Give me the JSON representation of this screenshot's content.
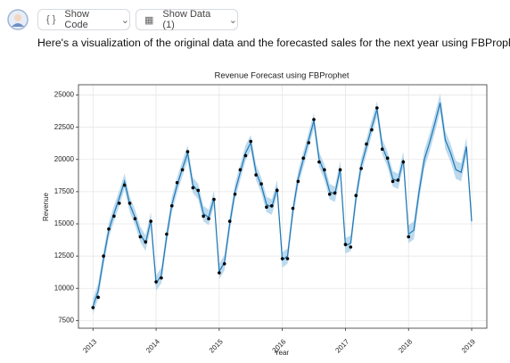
{
  "ui": {
    "buttons": [
      "Show Code",
      "Show Data (1)"
    ],
    "message": "Here's a visualization of the original data and the forecasted sales for the next year using FBProphet:"
  },
  "chart_data": {
    "type": "forecast",
    "title": "Revenue Forecast using FBProphet",
    "x_label": "Year",
    "y_label": "Revenue",
    "xlim": [
      2012.77,
      2019.24
    ],
    "xticks": [
      2013,
      2014,
      2015,
      2016,
      2017,
      2018,
      2019
    ],
    "ylim": [
      6900,
      25800
    ],
    "yticks": [
      7500,
      10000,
      12500,
      15000,
      17500,
      20000,
      22500,
      25000
    ],
    "grid": true,
    "line_color": "#1f77b4",
    "band_color": "#a6cde8",
    "point_color": "#000000",
    "x": [
      2013,
      2013.083,
      2013.167,
      2013.25,
      2013.333,
      2013.417,
      2013.5,
      2013.583,
      2013.667,
      2013.75,
      2013.833,
      2013.917,
      2014,
      2014.083,
      2014.167,
      2014.25,
      2014.333,
      2014.417,
      2014.5,
      2014.583,
      2014.667,
      2014.75,
      2014.833,
      2014.917,
      2015,
      2015.083,
      2015.167,
      2015.25,
      2015.333,
      2015.417,
      2015.5,
      2015.583,
      2015.667,
      2015.75,
      2015.833,
      2015.917,
      2016,
      2016.083,
      2016.167,
      2016.25,
      2016.333,
      2016.417,
      2016.5,
      2016.583,
      2016.667,
      2016.75,
      2016.833,
      2016.917,
      2017,
      2017.083,
      2017.167,
      2017.25,
      2017.333,
      2017.417,
      2017.5,
      2017.583,
      2017.667,
      2017.75,
      2017.833,
      2017.917,
      2018,
      2018.083,
      2018.167,
      2018.25,
      2018.333,
      2018.417,
      2018.5,
      2018.583,
      2018.667,
      2018.75,
      2018.833,
      2018.917,
      2019
    ],
    "forecast": [
      8600,
      9800,
      12300,
      14500,
      15800,
      17000,
      18300,
      16500,
      15500,
      14200,
      13500,
      15300,
      10400,
      11000,
      14000,
      16500,
      18000,
      19300,
      20500,
      18000,
      17500,
      15800,
      15500,
      17000,
      11300,
      12000,
      15000,
      17500,
      19000,
      20500,
      21300,
      19000,
      18000,
      16500,
      16300,
      17800,
      12200,
      12500,
      16000,
      18500,
      20000,
      21500,
      23000,
      20000,
      19000,
      17500,
      17300,
      19300,
      13300,
      13500,
      17000,
      19500,
      21000,
      22500,
      23900,
      21000,
      20000,
      18500,
      18300,
      20000,
      14200,
      14500,
      17500,
      20000,
      21300,
      22800,
      24400,
      21500,
      20500,
      19200,
      19000,
      21000,
      15200
    ],
    "lower": [
      8000,
      9200,
      11700,
      13900,
      15200,
      16400,
      17700,
      15900,
      14900,
      13600,
      12900,
      14700,
      9800,
      10400,
      13400,
      15900,
      17400,
      18700,
      19900,
      17400,
      16900,
      15200,
      14900,
      16400,
      10700,
      11400,
      14400,
      16900,
      18400,
      19900,
      20700,
      18400,
      17400,
      15900,
      15700,
      17200,
      11600,
      11900,
      15400,
      17900,
      19400,
      20900,
      22400,
      19400,
      18400,
      16900,
      16700,
      18700,
      12700,
      12900,
      16400,
      18900,
      20400,
      21900,
      23300,
      20400,
      19400,
      17900,
      17700,
      19400,
      13500,
      13800,
      16800,
      19300,
      20600,
      22100,
      23700,
      20800,
      19800,
      18500,
      18300,
      20300,
      14500
    ],
    "upper": [
      9200,
      10400,
      12900,
      15100,
      16400,
      17600,
      18900,
      17100,
      16100,
      14800,
      14100,
      15900,
      11000,
      11600,
      14600,
      17100,
      18600,
      19900,
      21100,
      18600,
      18100,
      16400,
      16100,
      17600,
      11900,
      12600,
      15600,
      18100,
      19600,
      21100,
      21900,
      19600,
      18600,
      17100,
      16900,
      18400,
      12800,
      13100,
      16600,
      19100,
      20600,
      22100,
      23600,
      20600,
      19600,
      18100,
      17900,
      19900,
      13900,
      14100,
      17600,
      20100,
      21600,
      23100,
      24500,
      21600,
      20600,
      19100,
      18900,
      20600,
      14900,
      15200,
      18200,
      20700,
      22000,
      23500,
      25100,
      22200,
      21200,
      19900,
      19700,
      21700,
      15900
    ],
    "actual": [
      8500,
      9300,
      12500,
      14600,
      15600,
      16600,
      18000,
      16600,
      15400,
      14000,
      13600,
      15200,
      10500,
      10800,
      14200,
      16400,
      18200,
      19200,
      20600,
      17800,
      17600,
      15600,
      15400,
      16900,
      11200,
      11900,
      15200,
      17300,
      19200,
      20300,
      21400,
      18800,
      18100,
      16300,
      16400,
      17600,
      12300,
      12300,
      16200,
      18300,
      20100,
      21300,
      23100,
      19800,
      19200,
      17300,
      17400,
      19200,
      13400,
      13200,
      17200,
      19300,
      21200,
      22300,
      24000,
      20800,
      20100,
      18300,
      18400,
      19800,
      14000,
      null,
      null,
      null,
      null,
      null,
      null,
      null,
      null,
      null,
      null,
      null,
      null
    ]
  }
}
